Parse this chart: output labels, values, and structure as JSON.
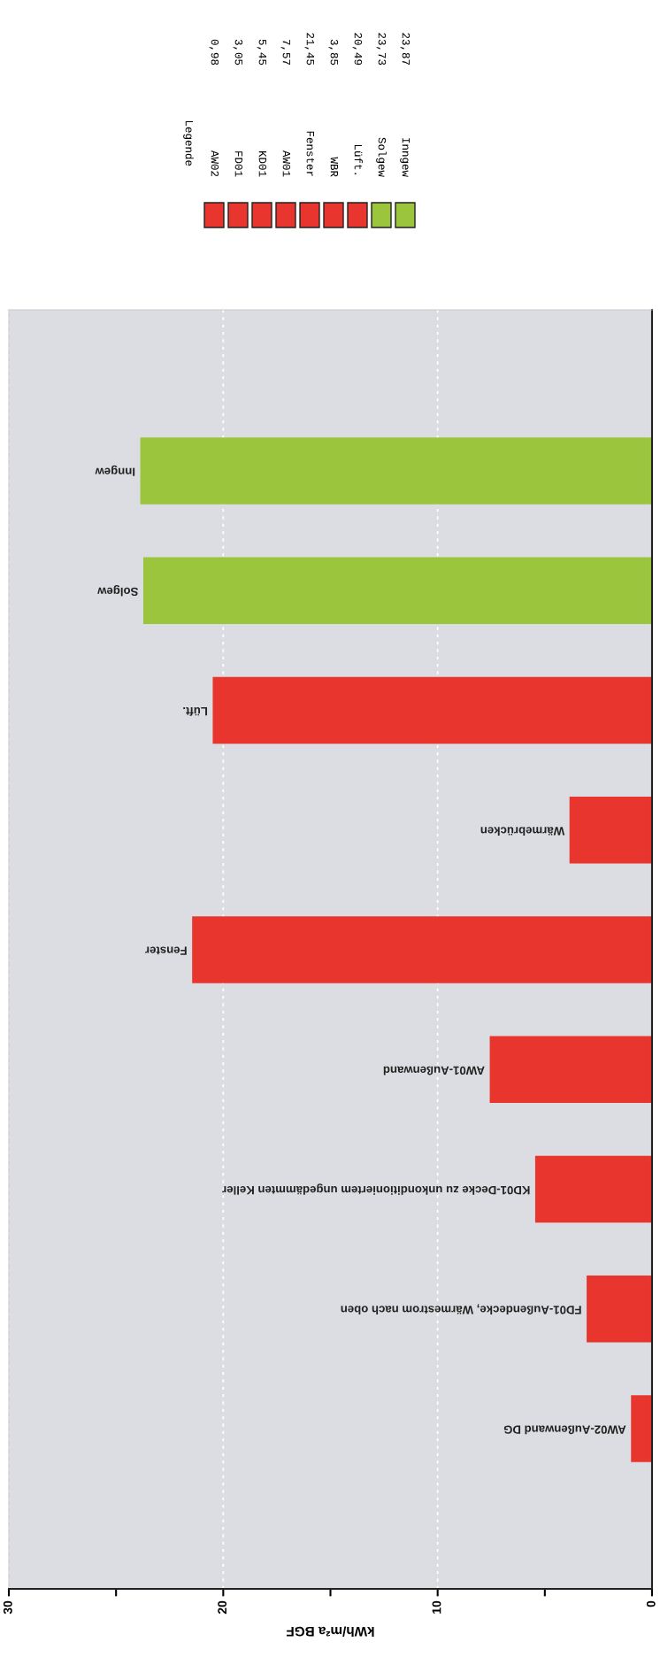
{
  "chart_data": {
    "type": "bar",
    "orientation": "horizontal",
    "xlabel": "kWh/m²a BGF",
    "grid": "x",
    "categories": [
      "Inngew",
      "Solgew",
      "Lüft.",
      "Wärmebrücken",
      "Fenster",
      "AW01-Außenwand",
      "KD01-Decke zu unkonditioniertem ungedämmten Keller",
      "FD01-Außendecke, Wärmestrom nach oben",
      "AW02-Außenwand DG"
    ],
    "values": [
      23.87,
      23.73,
      20.49,
      3.85,
      21.45,
      7.57,
      5.45,
      3.05,
      0.98
    ],
    "colors": [
      "#9bc53d",
      "#9bc53d",
      "#e8352e",
      "#e8352e",
      "#e8352e",
      "#e8352e",
      "#e8352e",
      "#e8352e",
      "#e8352e"
    ],
    "xlim": [
      30,
      0
    ],
    "xticks": [
      0,
      {
        "value": 5,
        "label": null
      },
      10,
      {
        "value": 15,
        "label": null
      },
      20,
      {
        "value": 25,
        "label": null
      },
      30
    ],
    "annotations": [
      "Legende",
      "AW02",
      "0,98",
      "FD01",
      "3,05",
      "KD01",
      "5,45",
      "AW01",
      "7,57",
      "Fenster",
      "21,45",
      "WBR",
      "3,85",
      "Lüft.",
      "20,49",
      "Solgew",
      "23,73",
      "Inngew",
      "23,87"
    ]
  }
}
